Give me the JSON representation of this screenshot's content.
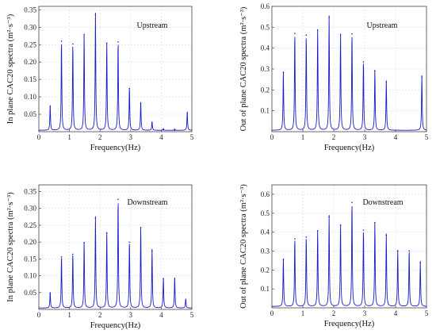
{
  "colors": {
    "series": "#1a1acd",
    "axis": "#444444",
    "grid": "#dcdcdc"
  },
  "chart_data": [
    {
      "type": "line",
      "title": "Upstream",
      "xlabel": "Frequency(Hz)",
      "ylabel": "In plane CAC20 spectra (m²·s⁻³)",
      "xlim": [
        0,
        5
      ],
      "ylim": [
        0,
        0.36
      ],
      "xticks": [
        "0",
        "1",
        "2",
        "3",
        "4",
        "5"
      ],
      "yticks": [
        "0.05",
        "0.10",
        "0.15",
        "0.20",
        "0.25",
        "0.30",
        "0.35"
      ],
      "grid": true,
      "peaks_x": [
        0.37,
        0.74,
        1.11,
        1.48,
        1.85,
        2.22,
        2.59,
        2.96,
        3.33,
        3.7,
        4.07,
        4.44,
        4.85
      ],
      "peaks_y": [
        0.072,
        0.26,
        0.252,
        0.279,
        0.336,
        0.254,
        0.258,
        0.124,
        0.081,
        0.025,
        0.005,
        0.004,
        0.053
      ]
    },
    {
      "type": "line",
      "title": "Upstream",
      "xlabel": "Frequency(Hz)",
      "ylabel": "Out of plane CAC20 spectra (m²·s⁻³)",
      "xlim": [
        0,
        5
      ],
      "ylim": [
        0,
        0.6
      ],
      "xticks": [
        "0",
        "1",
        "2",
        "3",
        "4",
        "5"
      ],
      "yticks": [
        "0.1",
        "0.2",
        "0.3",
        "0.4",
        "0.5",
        "0.6"
      ],
      "grid": true,
      "peaks_x": [
        0.37,
        0.74,
        1.11,
        1.48,
        1.85,
        2.22,
        2.59,
        2.96,
        3.33,
        3.7,
        4.85
      ],
      "peaks_y": [
        0.283,
        0.47,
        0.462,
        0.487,
        0.547,
        0.465,
        0.468,
        0.334,
        0.291,
        0.237,
        0.262
      ]
    },
    {
      "type": "line",
      "title": "Downstream",
      "xlabel": "Frequency(Hz)",
      "ylabel": "In plane CAC20 spectra (m²·s⁻³)",
      "xlim": [
        0,
        5
      ],
      "ylim": [
        0,
        0.37
      ],
      "xticks": [
        "0",
        "1",
        "2",
        "3",
        "4",
        "5"
      ],
      "yticks": [
        "0.05",
        "0.10",
        "0.15",
        "0.20",
        "0.25",
        "0.30",
        "0.35"
      ],
      "grid": true,
      "peaks_x": [
        0.37,
        0.74,
        1.11,
        1.48,
        1.85,
        2.22,
        2.59,
        2.96,
        3.33,
        3.7,
        4.07,
        4.44,
        4.8
      ],
      "peaks_y": [
        0.047,
        0.156,
        0.164,
        0.198,
        0.271,
        0.227,
        0.327,
        0.2,
        0.243,
        0.174,
        0.09,
        0.092,
        0.027
      ]
    },
    {
      "type": "line",
      "title": "Downstream",
      "xlabel": "Frequency(Hz)",
      "ylabel": "Out of plane CAC20 spectra (m²·s⁻³)",
      "xlim": [
        0,
        5
      ],
      "ylim": [
        0,
        0.65
      ],
      "xticks": [
        "0",
        "1",
        "2",
        "3",
        "4",
        "5"
      ],
      "yticks": [
        "0.1",
        "0.2",
        "0.3",
        "0.4",
        "0.5",
        "0.6"
      ],
      "grid": true,
      "peaks_x": [
        0.37,
        0.74,
        1.11,
        1.48,
        1.85,
        2.22,
        2.59,
        2.96,
        3.33,
        3.7,
        4.07,
        4.44,
        4.8
      ],
      "peaks_y": [
        0.255,
        0.365,
        0.374,
        0.407,
        0.481,
        0.437,
        0.557,
        0.411,
        0.45,
        0.383,
        0.3,
        0.301,
        0.238
      ]
    }
  ]
}
